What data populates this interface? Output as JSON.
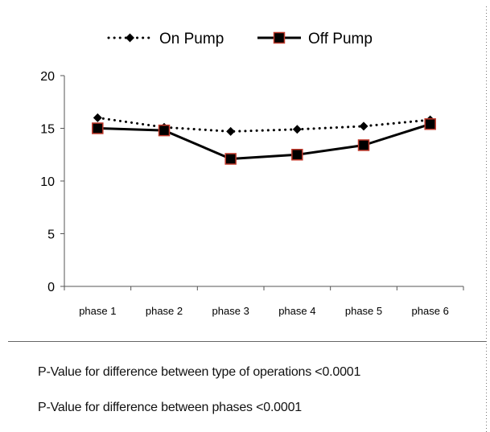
{
  "chart_data": {
    "type": "line",
    "categories": [
      "phase 1",
      "phase 2",
      "phase 3",
      "phase 4",
      "phase 5",
      "phase 6"
    ],
    "series": [
      {
        "name": "On Pump",
        "values": [
          16.0,
          15.1,
          14.7,
          14.9,
          15.2,
          15.8
        ],
        "color": "#000000",
        "line_style": "dotted",
        "marker": "diamond"
      },
      {
        "name": "Off Pump",
        "values": [
          15.0,
          14.8,
          12.1,
          12.5,
          13.4,
          15.4
        ],
        "color": "#000000",
        "line_style": "solid",
        "marker": "square",
        "marker_edge_color": "#c0392b"
      }
    ],
    "ylim": [
      0,
      20
    ],
    "y_ticks": [
      "0",
      "5",
      "10",
      "15",
      "20"
    ],
    "xlabel": "",
    "ylabel": "",
    "grid": false,
    "legend_position": "top"
  },
  "notes": [
    "P-Value for difference between type of operations <0.0001",
    "P-Value for difference between phases <0.0001"
  ]
}
